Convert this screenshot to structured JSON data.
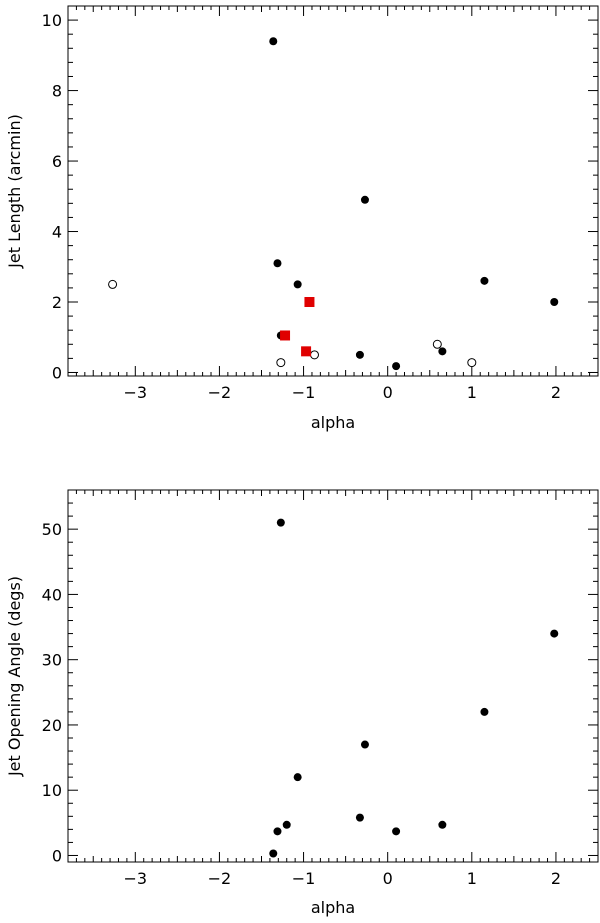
{
  "chart_data": [
    {
      "type": "scatter",
      "xlabel": "alpha",
      "ylabel": "Jet Length (arcmin)",
      "xlim": [
        -3.8,
        2.5
      ],
      "ylim": [
        -0.1,
        10.4
      ],
      "xticks": [
        -3,
        -2,
        -1,
        0,
        1,
        2
      ],
      "xtick_labels": [
        "−3",
        "−2",
        "−1",
        "0",
        "1",
        "2"
      ],
      "yticks": [
        0,
        2,
        4,
        6,
        8,
        10
      ],
      "ytick_labels": [
        "0",
        "2",
        "4",
        "6",
        "8",
        "10"
      ],
      "grid": false,
      "series": [
        {
          "marker": "filled-circle",
          "color": "#000000",
          "points": [
            {
              "x": -1.36,
              "y": 9.4
            },
            {
              "x": -0.27,
              "y": 4.9
            },
            {
              "x": -1.31,
              "y": 3.1
            },
            {
              "x": -1.07,
              "y": 2.5
            },
            {
              "x": 1.15,
              "y": 2.6
            },
            {
              "x": 1.98,
              "y": 2.0
            },
            {
              "x": -1.27,
              "y": 1.05
            },
            {
              "x": -0.33,
              "y": 0.5
            },
            {
              "x": 0.1,
              "y": 0.18
            },
            {
              "x": 0.65,
              "y": 0.6
            }
          ]
        },
        {
          "marker": "open-circle",
          "color": "#000000",
          "points": [
            {
              "x": -3.27,
              "y": 2.5
            },
            {
              "x": -1.27,
              "y": 0.28
            },
            {
              "x": -0.87,
              "y": 0.5
            },
            {
              "x": 0.59,
              "y": 0.8
            },
            {
              "x": 1.0,
              "y": 0.28
            }
          ]
        },
        {
          "marker": "filled-square",
          "color": "#e00000",
          "points": [
            {
              "x": -0.93,
              "y": 2.0
            },
            {
              "x": -1.22,
              "y": 1.05
            },
            {
              "x": -0.97,
              "y": 0.6
            }
          ]
        }
      ]
    },
    {
      "type": "scatter",
      "xlabel": "alpha",
      "ylabel": "Jet Opening Angle (degs)",
      "xlim": [
        -3.8,
        2.5
      ],
      "ylim": [
        -1.0,
        56.0
      ],
      "xticks": [
        -3,
        -2,
        -1,
        0,
        1,
        2
      ],
      "xtick_labels": [
        "−3",
        "−2",
        "−1",
        "0",
        "1",
        "2"
      ],
      "yticks": [
        0,
        10,
        20,
        30,
        40,
        50
      ],
      "ytick_labels": [
        "0",
        "10",
        "20",
        "30",
        "40",
        "50"
      ],
      "grid": false,
      "series": [
        {
          "marker": "filled-circle",
          "color": "#000000",
          "points": [
            {
              "x": -1.27,
              "y": 51.0
            },
            {
              "x": 1.98,
              "y": 34.0
            },
            {
              "x": 1.15,
              "y": 22.0
            },
            {
              "x": -0.27,
              "y": 17.0
            },
            {
              "x": -1.07,
              "y": 12.0
            },
            {
              "x": -0.33,
              "y": 5.8
            },
            {
              "x": -1.2,
              "y": 4.7
            },
            {
              "x": 0.65,
              "y": 4.7
            },
            {
              "x": -1.31,
              "y": 3.7
            },
            {
              "x": 0.1,
              "y": 3.7
            },
            {
              "x": -1.36,
              "y": 0.3
            }
          ]
        }
      ]
    }
  ]
}
